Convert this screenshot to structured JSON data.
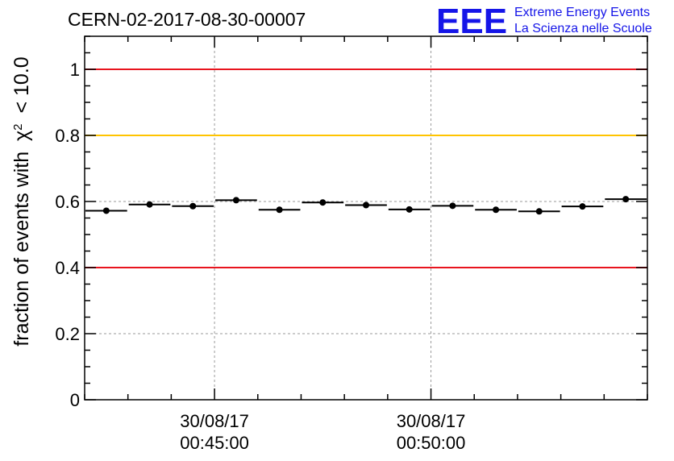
{
  "chart_data": {
    "type": "scatter",
    "title": "CERN-02-2017-08-30-00007",
    "ylabel": "fraction of events with",
    "ylabel_symbol": "χ",
    "ylabel_exp": "2",
    "ylabel_tail": "< 10.0",
    "ylim": [
      0,
      1.1
    ],
    "yticks": [
      "0",
      "0.2",
      "0.4",
      "0.6",
      "0.8",
      "1"
    ],
    "ytick_values": [
      0,
      0.2,
      0.4,
      0.6,
      0.8,
      1.0
    ],
    "xlim": [
      0,
      13
    ],
    "xticks": [
      {
        "x": 3,
        "line1": "30/08/17",
        "line2": "00:45:00"
      },
      {
        "x": 8,
        "line1": "30/08/17",
        "line2": "00:50:00"
      }
    ],
    "grid": true,
    "reference_lines": [
      {
        "y": 1.0,
        "color": "#e8141e"
      },
      {
        "y": 0.8,
        "color": "#ffc400"
      },
      {
        "y": 0.4,
        "color": "#e8141e"
      }
    ],
    "points": [
      {
        "x": 0.5,
        "y": 0.572
      },
      {
        "x": 1.5,
        "y": 0.591
      },
      {
        "x": 2.5,
        "y": 0.586
      },
      {
        "x": 3.5,
        "y": 0.604
      },
      {
        "x": 4.5,
        "y": 0.575
      },
      {
        "x": 5.5,
        "y": 0.597
      },
      {
        "x": 6.5,
        "y": 0.589
      },
      {
        "x": 7.5,
        "y": 0.576
      },
      {
        "x": 8.5,
        "y": 0.587
      },
      {
        "x": 9.5,
        "y": 0.575
      },
      {
        "x": 10.5,
        "y": 0.57
      },
      {
        "x": 11.5,
        "y": 0.585
      },
      {
        "x": 12.5,
        "y": 0.607
      }
    ],
    "bin_half_width": 0.5
  },
  "logo": {
    "letters": "EEE",
    "line1": "Extreme Energy Events",
    "line2": "La Scienza nelle Scuole"
  }
}
